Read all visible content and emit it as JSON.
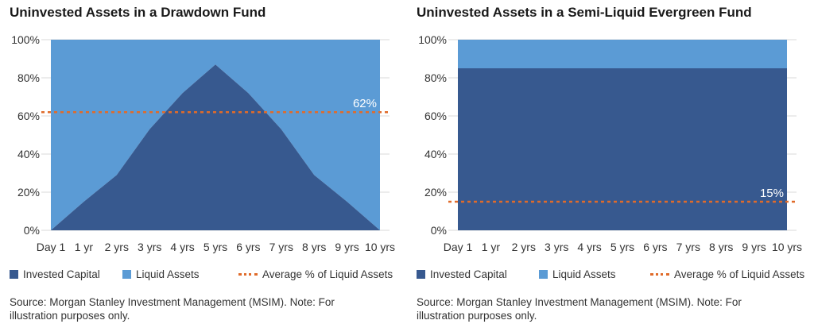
{
  "colors": {
    "invested": "#37598f",
    "liquid": "#5b9bd5",
    "average": "#e06b2a",
    "grid": "#d9d9d9"
  },
  "legend": {
    "invested_label": "Invested Capital",
    "liquid_label": "Liquid Assets",
    "average_label": "Average % of Liquid Assets"
  },
  "note": "Source: Morgan Stanley Investment Management (MSIM). Note: For illustration purposes only.",
  "chart_data": [
    {
      "type": "area",
      "title": "Uninvested Assets in a Drawdown Fund",
      "x": [
        "Day 1",
        "1 yr",
        "2 yrs",
        "3 yrs",
        "4 yrs",
        "5 yrs",
        "6 yrs",
        "7 yrs",
        "8 yrs",
        "9 yrs",
        "10 yrs"
      ],
      "y_ticks": [
        "0%",
        "20%",
        "40%",
        "60%",
        "80%",
        "100%"
      ],
      "ylim": [
        0,
        100
      ],
      "stacked": true,
      "series": [
        {
          "name": "Invested Capital",
          "values": [
            0,
            15,
            29,
            53,
            72,
            87,
            72,
            53,
            29,
            15,
            0
          ]
        },
        {
          "name": "Liquid Assets",
          "values": [
            100,
            85,
            71,
            47,
            28,
            13,
            28,
            47,
            71,
            85,
            100
          ]
        }
      ],
      "average": {
        "name": "Average % of Liquid Assets",
        "value": 62,
        "label": "62%"
      },
      "grid": true,
      "legend_position": "bottom"
    },
    {
      "type": "area",
      "title": "Uninvested Assets in a Semi-Liquid Evergreen Fund",
      "x": [
        "Day 1",
        "1 yr",
        "2 yrs",
        "3 yrs",
        "4 yrs",
        "5 yrs",
        "6 yrs",
        "7 yrs",
        "8 yrs",
        "9 yrs",
        "10 yrs"
      ],
      "y_ticks": [
        "0%",
        "20%",
        "40%",
        "60%",
        "80%",
        "100%"
      ],
      "ylim": [
        0,
        100
      ],
      "stacked": true,
      "series": [
        {
          "name": "Invested Capital",
          "values": [
            85,
            85,
            85,
            85,
            85,
            85,
            85,
            85,
            85,
            85,
            85
          ]
        },
        {
          "name": "Liquid Assets",
          "values": [
            15,
            15,
            15,
            15,
            15,
            15,
            15,
            15,
            15,
            15,
            15
          ]
        }
      ],
      "average": {
        "name": "Average % of Liquid Assets",
        "value": 15,
        "label": "15%"
      },
      "grid": true,
      "legend_position": "bottom"
    }
  ]
}
